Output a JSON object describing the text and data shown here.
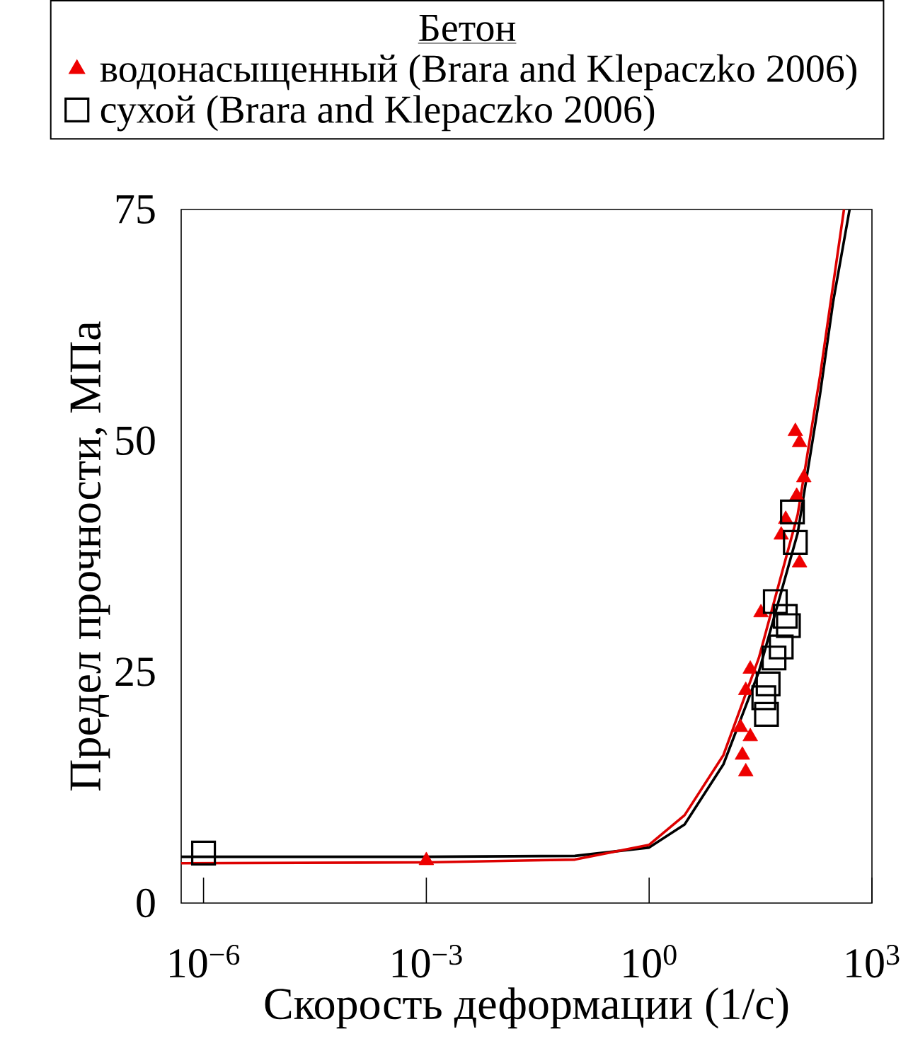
{
  "chart_data": {
    "type": "scatter",
    "xlabel": "Скорость деформации (1/с)",
    "ylabel": "Предел прочности, МПа",
    "legend_title": "Бетон",
    "legend": "top",
    "log": "x",
    "xlim": [
      5e-07,
      1000
    ],
    "xticks": [
      {
        "value": 1e-06,
        "label": "10$^{−6}$"
      },
      {
        "value": 0.001,
        "label": "10$^{−3}$"
      },
      {
        "value": 1,
        "label": "10$^{0}$"
      },
      {
        "value": 1000,
        "label": "10$^{3}$"
      }
    ],
    "ylim": [
      0,
      75
    ],
    "yticks": [
      0,
      25,
      50,
      75
    ],
    "series": [
      {
        "type": "line",
        "color": "#000000",
        "line_style": "solid",
        "x": [
          5e-07,
          0.001,
          0.1,
          1,
          3,
          10,
          30,
          100,
          200,
          300,
          500
        ],
        "values": [
          5,
          5,
          5.1,
          6,
          8.5,
          15,
          25,
          40,
          55,
          65,
          75
        ]
      },
      {
        "type": "line",
        "color": "#dd0000",
        "line_style": "solid",
        "x": [
          5e-07,
          0.001,
          0.1,
          1,
          3,
          10,
          30,
          100,
          200,
          420
        ],
        "values": [
          4.3,
          4.4,
          4.7,
          6.3,
          9.5,
          16,
          26.5,
          42,
          57,
          75
        ]
      },
      {
        "name": "водонасыщенный (Brara and Klepaczko 2006)",
        "color": "#ee0000",
        "marker": "triangle",
        "x": [
          0.001,
          93,
          106,
          121,
          97,
          69,
          60,
          106,
          32,
          23,
          20,
          17,
          23,
          20,
          18
        ],
        "values": [
          4.6,
          51,
          49.8,
          46,
          44,
          41.5,
          39.8,
          36.8,
          31.4,
          25.3,
          23,
          19,
          18,
          14.2,
          16
        ]
      },
      {
        "name": "сухой (Brara and Klepaczko 2006)",
        "color": "#000000",
        "marker": "square",
        "x": [
          1e-06,
          85,
          93,
          50,
          68,
          75,
          60,
          48,
          40,
          35,
          38
        ],
        "values": [
          5.4,
          42.3,
          39,
          32.6,
          31,
          30,
          27.7,
          26.5,
          23.7,
          22.2,
          20.4
        ]
      }
    ]
  }
}
